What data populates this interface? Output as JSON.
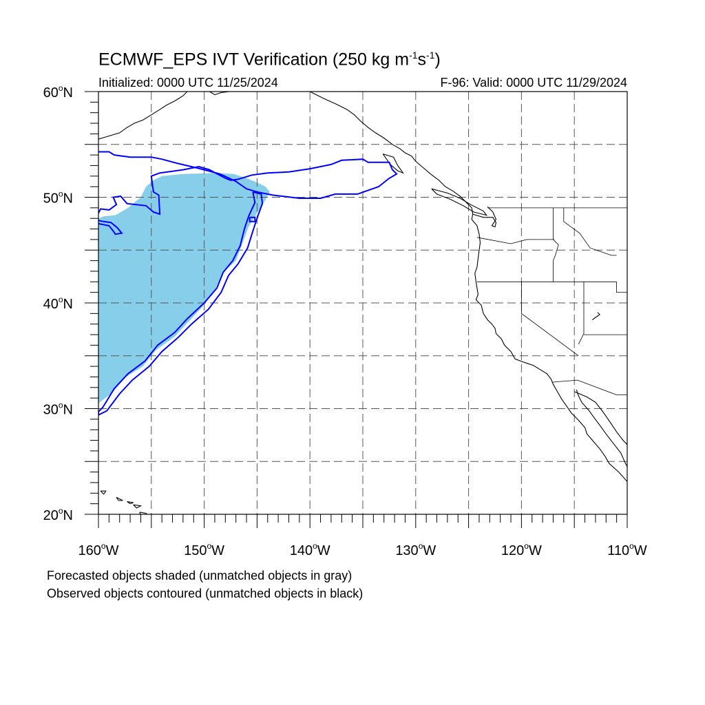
{
  "title": {
    "main": "ECMWF_EPS IVT Verification (250 kg m",
    "exp1": "-1",
    "mid": "s",
    "exp2": "-1",
    "close": ")"
  },
  "subtitle_left": "Initialized: 0000 UTC 11/25/2024",
  "subtitle_right": "F-96: Valid: 0000 UTC 11/29/2024",
  "notes": [
    "Forecasted objects shaded (unmatched objects in gray)",
    "Observed objects contoured (unmatched objects in black)"
  ],
  "map": {
    "lon_range": [
      -160,
      -110
    ],
    "lat_range": [
      20,
      60
    ],
    "lon_labels": [
      {
        "lon": -160,
        "text": "160",
        "hemi": "W"
      },
      {
        "lon": -150,
        "text": "150",
        "hemi": "W"
      },
      {
        "lon": -140,
        "text": "140",
        "hemi": "W"
      },
      {
        "lon": -130,
        "text": "130",
        "hemi": "W"
      },
      {
        "lon": -120,
        "text": "120",
        "hemi": "W"
      },
      {
        "lon": -110,
        "text": "110",
        "hemi": "W"
      }
    ],
    "lat_labels": [
      {
        "lat": 60,
        "text": "60",
        "hemi": "N"
      },
      {
        "lat": 50,
        "text": "50",
        "hemi": "N"
      },
      {
        "lat": 40,
        "text": "40",
        "hemi": "N"
      },
      {
        "lat": 30,
        "text": "30",
        "hemi": "N"
      },
      {
        "lat": 20,
        "text": "20",
        "hemi": "N"
      }
    ],
    "grid_lons": [
      -155,
      -150,
      -145,
      -140,
      -135,
      -130,
      -125,
      -120,
      -115
    ],
    "grid_lats": [
      55,
      50,
      45,
      40,
      35,
      30,
      25
    ],
    "colors": {
      "forecast_fill": "#87ceeb",
      "observed_contour": "#0000ff",
      "coastline": "#000000",
      "grid": "#555555"
    },
    "forecast_object": [
      [
        -160,
        48
      ],
      [
        -159.5,
        48.2
      ],
      [
        -158.4,
        48.3
      ],
      [
        -157.2,
        49
      ],
      [
        -156,
        50
      ],
      [
        -155.5,
        51
      ],
      [
        -154.8,
        51.6
      ],
      [
        -154,
        52
      ],
      [
        -152,
        52.2
      ],
      [
        -149,
        52.3
      ],
      [
        -147.2,
        52.2
      ],
      [
        -146,
        51.8
      ],
      [
        -145,
        51.4
      ],
      [
        -144.2,
        51
      ],
      [
        -143.8,
        50.5
      ],
      [
        -144.3,
        49.6
      ],
      [
        -145,
        48.5
      ],
      [
        -145.8,
        47.2
      ],
      [
        -146.4,
        45.6
      ],
      [
        -147,
        44
      ],
      [
        -148.3,
        42.8
      ],
      [
        -149,
        41.2
      ],
      [
        -150.2,
        39.6
      ],
      [
        -151.5,
        38.2
      ],
      [
        -152.8,
        36.8
      ],
      [
        -154.6,
        35.5
      ],
      [
        -155.8,
        34
      ],
      [
        -157.4,
        33
      ],
      [
        -158.7,
        31.5
      ],
      [
        -160,
        30.5
      ]
    ],
    "observed_contours": [
      [
        [
          -160,
          54.3
        ],
        [
          -159,
          54.3
        ],
        [
          -158.5,
          54
        ],
        [
          -157,
          53.8
        ],
        [
          -155,
          53.8
        ],
        [
          -154,
          53.6
        ],
        [
          -152.5,
          53.2
        ],
        [
          -150.8,
          52.8
        ],
        [
          -148.5,
          52.2
        ],
        [
          -147,
          51.5
        ],
        [
          -146,
          50.8
        ],
        [
          -145,
          50.5
        ],
        [
          -143.5,
          50.2
        ],
        [
          -141,
          49.9
        ],
        [
          -139,
          49.9
        ],
        [
          -137.6,
          50.3
        ],
        [
          -135.5,
          50.3
        ],
        [
          -133.5,
          51
        ],
        [
          -132.5,
          51.8
        ],
        [
          -131.8,
          52.2
        ],
        [
          -132.2,
          52.6
        ],
        [
          -132.5,
          53.3
        ],
        [
          -134.5,
          53.3
        ],
        [
          -135,
          53.6
        ],
        [
          -137,
          53.5
        ],
        [
          -138,
          53.1
        ],
        [
          -140,
          52.7
        ],
        [
          -142,
          52.4
        ],
        [
          -144,
          52.3
        ],
        [
          -145.5,
          52.1
        ],
        [
          -146.8,
          51.7
        ],
        [
          -147.5,
          51.6
        ],
        [
          -148,
          51.8
        ],
        [
          -149.5,
          52.6
        ],
        [
          -150.5,
          52.9
        ],
        [
          -152,
          52.6
        ],
        [
          -154.2,
          52.3
        ],
        [
          -155,
          52
        ],
        [
          -154.8,
          50.5
        ],
        [
          -154.3,
          50.2
        ],
        [
          -154.2,
          48.4
        ],
        [
          -154.8,
          48.6
        ],
        [
          -155.5,
          49.2
        ],
        [
          -157.3,
          49.4
        ],
        [
          -157.9,
          50.1
        ],
        [
          -158.6,
          50
        ],
        [
          -158.3,
          49.3
        ],
        [
          -159,
          48.8
        ],
        [
          -159.8,
          48.9
        ],
        [
          -160,
          48.5
        ]
      ],
      [
        [
          -160,
          47.5
        ],
        [
          -159,
          47.3
        ],
        [
          -158.6,
          46.8
        ],
        [
          -158.4,
          46.5
        ],
        [
          -157.8,
          46.6
        ],
        [
          -158.2,
          47.1
        ],
        [
          -158.8,
          47.6
        ],
        [
          -159.5,
          47.7
        ],
        [
          -160,
          47.8
        ]
      ],
      [
        [
          -145.4,
          50.5
        ],
        [
          -145.2,
          49.5
        ],
        [
          -145.8,
          48.2
        ],
        [
          -146.2,
          47
        ],
        [
          -146.6,
          45.4
        ],
        [
          -147.3,
          44
        ],
        [
          -148.2,
          42.9
        ],
        [
          -148.8,
          41.4
        ],
        [
          -150,
          40
        ],
        [
          -151.6,
          38.5
        ],
        [
          -152.8,
          37.2
        ],
        [
          -154.4,
          36
        ],
        [
          -155.6,
          34.5
        ],
        [
          -157.2,
          33.3
        ],
        [
          -158.5,
          31.9
        ],
        [
          -159.6,
          30.1
        ],
        [
          -160,
          29.7
        ],
        [
          -160,
          29.4
        ],
        [
          -159.2,
          29.8
        ],
        [
          -158,
          31.4
        ],
        [
          -156.8,
          32.7
        ],
        [
          -155.2,
          34
        ],
        [
          -154,
          35.4
        ],
        [
          -152.5,
          36.7
        ],
        [
          -151.2,
          38
        ],
        [
          -149.6,
          39.4
        ],
        [
          -148.4,
          41
        ],
        [
          -147.7,
          42.6
        ],
        [
          -146.8,
          43.7
        ],
        [
          -145.9,
          45.2
        ],
        [
          -145.4,
          46.8
        ],
        [
          -144.9,
          48.3
        ],
        [
          -144.5,
          49.4
        ],
        [
          -144.6,
          50.3
        ],
        [
          -145.4,
          50.5
        ]
      ],
      [
        [
          -145.7,
          48.1
        ],
        [
          -145.2,
          48.1
        ],
        [
          -145.2,
          47.7
        ],
        [
          -145.7,
          47.7
        ],
        [
          -145.7,
          48.1
        ]
      ]
    ],
    "coastlines": [
      [
        [
          -160,
          55.5
        ],
        [
          -159,
          55.8
        ],
        [
          -158,
          56.1
        ],
        [
          -157.3,
          56.6
        ],
        [
          -156.6,
          57
        ],
        [
          -155.8,
          57.3
        ],
        [
          -155,
          57.8
        ],
        [
          -154.2,
          58.3
        ],
        [
          -153.6,
          58.7
        ],
        [
          -152.8,
          59.1
        ],
        [
          -152,
          59.6
        ],
        [
          -151.6,
          60
        ]
      ],
      [
        [
          -149.5,
          60
        ],
        [
          -149,
          59.7
        ],
        [
          -148.4,
          59.9
        ],
        [
          -147.6,
          60
        ]
      ],
      [
        [
          -140,
          60
        ],
        [
          -139.6,
          59.8
        ],
        [
          -138.6,
          59.3
        ],
        [
          -137.5,
          58.8
        ],
        [
          -136.5,
          58.3
        ],
        [
          -135.8,
          57.8
        ],
        [
          -135.2,
          57.2
        ],
        [
          -134.5,
          56.6
        ],
        [
          -133.8,
          56.1
        ],
        [
          -133,
          55.6
        ],
        [
          -132.2,
          55
        ],
        [
          -131.5,
          54.6
        ],
        [
          -131,
          54.2
        ],
        [
          -130.4,
          53.9
        ],
        [
          -130,
          53.4
        ],
        [
          -129.3,
          52.8
        ],
        [
          -128.6,
          52.2
        ],
        [
          -127.8,
          51.6
        ],
        [
          -127.2,
          51
        ],
        [
          -126.5,
          50.6
        ],
        [
          -125.8,
          50.1
        ],
        [
          -125.2,
          49.5
        ],
        [
          -124.7,
          49
        ],
        [
          -124.6,
          48.4
        ],
        [
          -124.7,
          47.9
        ],
        [
          -124.2,
          47.3
        ],
        [
          -124,
          46.5
        ],
        [
          -123.9,
          45.7
        ],
        [
          -124,
          45
        ],
        [
          -124.1,
          44.2
        ],
        [
          -124.2,
          43.4
        ],
        [
          -124.4,
          42.8
        ],
        [
          -124.3,
          42
        ],
        [
          -124.2,
          41.4
        ],
        [
          -124.1,
          40.8
        ],
        [
          -124.3,
          40.3
        ],
        [
          -123.8,
          39.8
        ],
        [
          -123.6,
          39
        ],
        [
          -123.2,
          38.4
        ],
        [
          -122.8,
          38
        ],
        [
          -122.5,
          37.6
        ],
        [
          -122.4,
          37.1
        ],
        [
          -121.9,
          36.6
        ],
        [
          -121.6,
          36
        ],
        [
          -121,
          35.4
        ],
        [
          -120.6,
          34.7
        ],
        [
          -119.8,
          34.4
        ],
        [
          -118.9,
          34.1
        ],
        [
          -118.4,
          33.8
        ],
        [
          -117.6,
          33.3
        ],
        [
          -117.2,
          32.8
        ],
        [
          -117,
          32.3
        ],
        [
          -116.6,
          31.6
        ],
        [
          -116.2,
          30.9
        ],
        [
          -115.7,
          30.2
        ],
        [
          -115.3,
          29.6
        ],
        [
          -114.6,
          28.9
        ],
        [
          -114,
          28.2
        ],
        [
          -113.8,
          27.6
        ],
        [
          -113.2,
          26.9
        ],
        [
          -112.6,
          26.2
        ],
        [
          -112.1,
          25.5
        ],
        [
          -111.7,
          24.8
        ],
        [
          -110.8,
          24
        ],
        [
          -110,
          23.1
        ]
      ],
      [
        [
          -114.8,
          31.8
        ],
        [
          -114.6,
          31.2
        ],
        [
          -114.3,
          30.6
        ],
        [
          -113.6,
          29.8
        ],
        [
          -113.1,
          29.1
        ],
        [
          -112.5,
          28.3
        ],
        [
          -112,
          27.6
        ],
        [
          -111.3,
          26.7
        ],
        [
          -110.6,
          25.8
        ],
        [
          -110.2,
          24.9
        ],
        [
          -110,
          24.5
        ]
      ],
      [
        [
          -115,
          31.6
        ],
        [
          -113.8,
          31.1
        ],
        [
          -113,
          30.6
        ],
        [
          -112.3,
          29.7
        ],
        [
          -111.6,
          28.7
        ],
        [
          -111,
          27.8
        ],
        [
          -110.4,
          27
        ],
        [
          -110,
          26.6
        ]
      ],
      [
        [
          -128.5,
          50.8
        ],
        [
          -127,
          50.4
        ],
        [
          -125.8,
          49.9
        ],
        [
          -124.8,
          49.3
        ],
        [
          -123.6,
          48.7
        ],
        [
          -123.3,
          48.3
        ],
        [
          -124.5,
          48.6
        ],
        [
          -125.5,
          49.2
        ],
        [
          -126.7,
          49.8
        ],
        [
          -128,
          50.3
        ],
        [
          -128.5,
          50.8
        ]
      ],
      [
        [
          -133.1,
          54.1
        ],
        [
          -132.1,
          53.8
        ],
        [
          -131.7,
          53
        ],
        [
          -131.2,
          52.3
        ],
        [
          -131.7,
          52.5
        ],
        [
          -132.4,
          53.1
        ],
        [
          -133.1,
          54.1
        ]
      ],
      [
        [
          -124.6,
          48.4
        ],
        [
          -123.6,
          48.1
        ],
        [
          -122.7,
          48.1
        ],
        [
          -122.4,
          47.6
        ],
        [
          -122.5,
          47.2
        ],
        [
          -122.8,
          47.3
        ],
        [
          -122.4,
          47.9
        ],
        [
          -122.7,
          48.6
        ],
        [
          -123.2,
          49.1
        ]
      ],
      [
        [
          -156.1,
          20.2
        ],
        [
          -155.5,
          20.1
        ],
        [
          -155,
          19.6
        ],
        [
          -155.6,
          19.2
        ],
        [
          -155.9,
          19.5
        ],
        [
          -156.1,
          20.2
        ]
      ],
      [
        [
          -159.8,
          22.2
        ],
        [
          -159.3,
          22.2
        ],
        [
          -159.5,
          21.9
        ],
        [
          -159.8,
          22.2
        ]
      ],
      [
        [
          -158.3,
          21.6
        ],
        [
          -157.7,
          21.3
        ],
        [
          -158.1,
          21.3
        ],
        [
          -158.3,
          21.6
        ]
      ],
      [
        [
          -157.3,
          21.2
        ],
        [
          -156.7,
          21.1
        ],
        [
          -157,
          21
        ],
        [
          -157.3,
          21.2
        ]
      ],
      [
        [
          -156.7,
          20.9
        ],
        [
          -156,
          20.8
        ],
        [
          -156.4,
          20.6
        ],
        [
          -156.7,
          20.9
        ]
      ],
      [
        [
          -113.3,
          38.4
        ],
        [
          -112.9,
          38.7
        ],
        [
          -112.6,
          38.9
        ],
        [
          -112.8,
          39.1
        ]
      ]
    ],
    "borders": [
      [
        [
          -123.2,
          49
        ],
        [
          -95,
          49
        ]
      ],
      [
        [
          -124.2,
          46.2
        ],
        [
          -121,
          45.6
        ],
        [
          -119.5,
          46
        ],
        [
          -116.9,
          46
        ]
      ],
      [
        [
          -117,
          49
        ],
        [
          -117,
          46
        ],
        [
          -116.5,
          45.5
        ],
        [
          -116.8,
          44.5
        ],
        [
          -117,
          44
        ],
        [
          -117,
          42
        ]
      ],
      [
        [
          -124.2,
          42
        ],
        [
          -111,
          42
        ]
      ],
      [
        [
          -120,
          42
        ],
        [
          -120,
          39
        ],
        [
          -114.6,
          35
        ]
      ],
      [
        [
          -114.1,
          42
        ],
        [
          -114.1,
          37.1
        ],
        [
          -114.6,
          36.1
        ]
      ],
      [
        [
          -114.1,
          37
        ],
        [
          -109,
          37
        ]
      ],
      [
        [
          -111,
          42
        ],
        [
          -111,
          41
        ],
        [
          -109,
          41
        ]
      ],
      [
        [
          -117.1,
          32.5
        ],
        [
          -114.7,
          32.7
        ],
        [
          -111,
          31.3
        ],
        [
          -108,
          31.3
        ]
      ],
      [
        [
          -116,
          49
        ],
        [
          -116,
          47.7
        ],
        [
          -114.5,
          46.6
        ],
        [
          -113.5,
          45.2
        ],
        [
          -111.5,
          44.5
        ],
        [
          -111,
          44.5
        ]
      ]
    ]
  }
}
